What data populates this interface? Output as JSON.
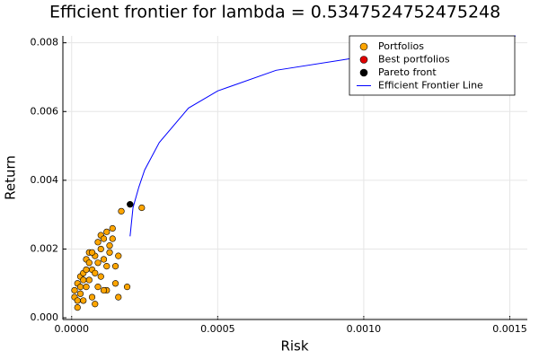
{
  "chart_data": {
    "type": "scatter",
    "title": "Efficient frontier for lambda = 0.5347524752475248",
    "x_label": "Risk",
    "y_label": "Return",
    "xlim": [
      -3e-05,
      0.00156
    ],
    "ylim": [
      -5e-05,
      0.0082
    ],
    "xticks": [
      {
        "value": 0,
        "label": "0.0000"
      },
      {
        "value": 0.0005,
        "label": "0.0005"
      },
      {
        "value": 0.001,
        "label": "0.0010"
      },
      {
        "value": 0.0015,
        "label": "0.0015"
      }
    ],
    "yticks": [
      {
        "value": 0,
        "label": "0.000"
      },
      {
        "value": 0.002,
        "label": "0.002"
      },
      {
        "value": 0.004,
        "label": "0.004"
      },
      {
        "value": 0.006,
        "label": "0.006"
      },
      {
        "value": 0.008,
        "label": "0.008"
      }
    ],
    "grid": true,
    "legend": "top-right",
    "series": [
      {
        "name": "Portfolios",
        "type": "scatter",
        "color": "#ffa500",
        "x": [
          1e-05,
          1e-05,
          2e-05,
          2e-05,
          3e-05,
          3e-05,
          4e-05,
          4e-05,
          5e-05,
          5e-05,
          6e-05,
          6e-05,
          7e-05,
          7e-05,
          8e-05,
          8e-05,
          8e-05,
          9e-05,
          9e-05,
          0.0001,
          0.0001,
          0.00011,
          0.00011,
          0.00012,
          0.00012,
          0.00012,
          0.00013,
          0.00014,
          0.00014,
          0.00015,
          0.00015,
          0.00016,
          0.00017,
          0.00019,
          0.00024,
          3e-05,
          6e-05,
          4e-05,
          2e-05,
          0.0001,
          0.00013,
          9e-05,
          5e-05,
          7e-05,
          0.00011,
          0.00016
        ],
        "values": [
          0.0006,
          0.0008,
          0.0003,
          0.001,
          0.0012,
          0.0007,
          0.0013,
          0.0005,
          0.0009,
          0.0017,
          0.0019,
          0.0011,
          0.0014,
          0.0006,
          0.0018,
          0.0004,
          0.0013,
          0.0016,
          0.0009,
          0.0024,
          0.002,
          0.0017,
          0.0023,
          0.0025,
          0.0015,
          0.0008,
          0.0021,
          0.0026,
          0.0023,
          0.0015,
          0.001,
          0.0018,
          0.0031,
          0.0009,
          0.0032,
          0.0009,
          0.0016,
          0.0011,
          0.0005,
          0.0012,
          0.0019,
          0.0022,
          0.0014,
          0.0019,
          0.0008,
          0.0006
        ]
      },
      {
        "name": "Best portfolios",
        "type": "scatter",
        "color": "#e00000",
        "x": [
          0.0002
        ],
        "values": [
          0.0033
        ]
      },
      {
        "name": "Pareto front",
        "type": "scatter",
        "color": "#000000",
        "x": [
          0.0002
        ],
        "values": [
          0.0033
        ]
      },
      {
        "name": "Efficient Frontier Line",
        "type": "line",
        "color": "#0000ff",
        "x": [
          0.0002,
          0.00021,
          0.00023,
          0.00025,
          0.0003,
          0.0004,
          0.0005,
          0.0007,
          0.001,
          0.0013,
          0.00152
        ],
        "values": [
          0.00237,
          0.0032,
          0.0038,
          0.0043,
          0.0051,
          0.0061,
          0.0066,
          0.0072,
          0.0076,
          0.0079,
          0.0082
        ]
      }
    ]
  }
}
